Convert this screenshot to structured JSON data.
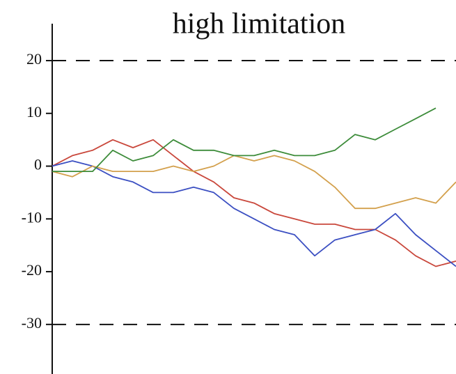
{
  "chart_data": {
    "type": "line",
    "title": "high limitation",
    "x": [
      0,
      5,
      10,
      15,
      20,
      25,
      30,
      35,
      40,
      45,
      50,
      55,
      60,
      65,
      70,
      75,
      80,
      85,
      90,
      95,
      100
    ],
    "xlim": [
      0,
      100
    ],
    "ylim": [
      -39,
      27
    ],
    "yticks": [
      20,
      10,
      0,
      -10,
      -20,
      -30
    ],
    "hlines": [
      20,
      -30
    ],
    "series": [
      {
        "color": "#c9473b",
        "values": [
          0,
          2,
          3,
          5,
          3.5,
          5,
          2,
          -1,
          -3,
          -6,
          -7,
          -9,
          -10,
          -11,
          -11,
          -12,
          -12,
          -14,
          -17,
          -19,
          -18
        ]
      },
      {
        "color": "#3b4fc2",
        "values": [
          0,
          1,
          0,
          -2,
          -3,
          -5,
          -5,
          -4,
          -5,
          -8,
          -10,
          -12,
          -13,
          -17,
          -14,
          -13,
          -12,
          -9,
          -13,
          -16,
          -19
        ]
      },
      {
        "color": "#d3a04c",
        "values": [
          -1,
          -2,
          0,
          -1,
          -1,
          -1,
          0,
          -1,
          0,
          2,
          1,
          2,
          1,
          -1,
          -4,
          -8,
          -8,
          -7,
          -6,
          -7,
          -3
        ]
      },
      {
        "color": "#3d8c3a",
        "values": [
          -1,
          -1,
          -1,
          3,
          1,
          2,
          5,
          3,
          3,
          2,
          2,
          3,
          2,
          2,
          3,
          6,
          5,
          7,
          9,
          11,
          null
        ]
      }
    ]
  }
}
